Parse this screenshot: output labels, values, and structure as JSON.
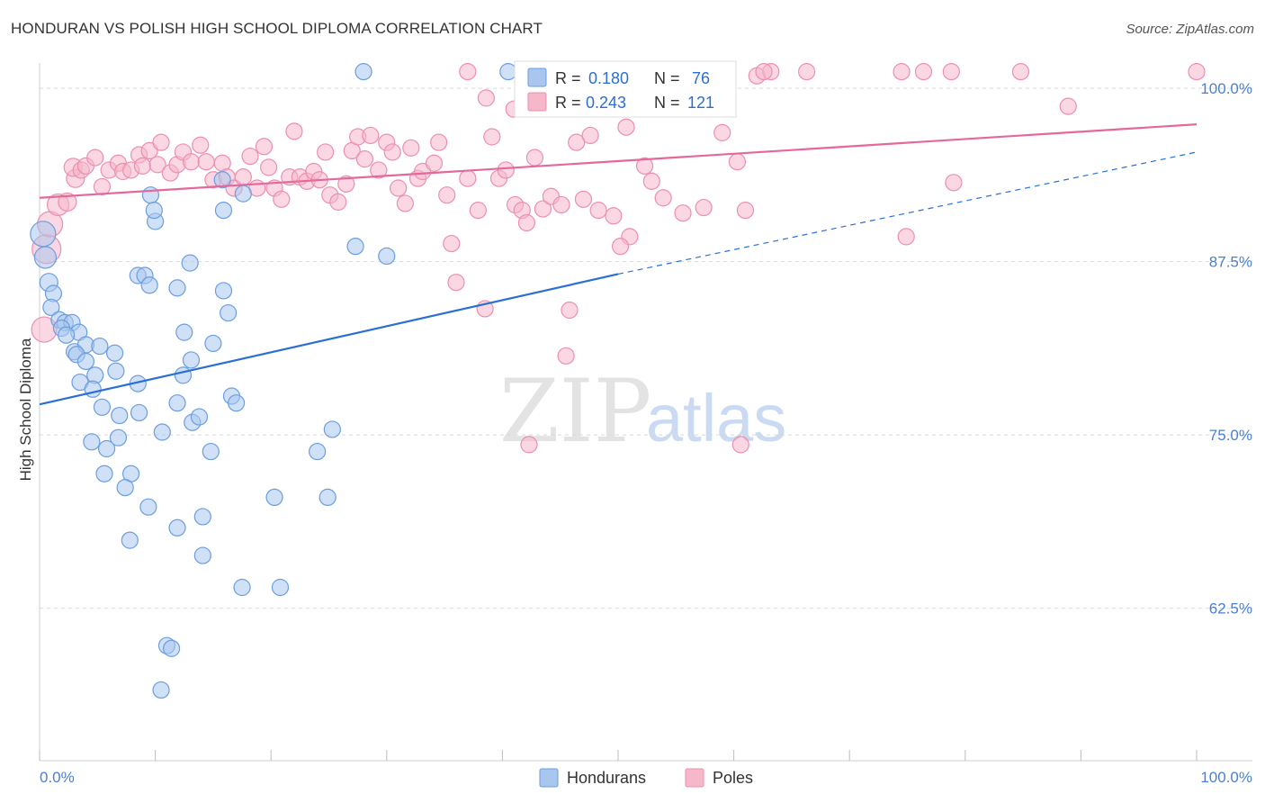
{
  "header": {
    "title": "HONDURAN VS POLISH HIGH SCHOOL DIPLOMA CORRELATION CHART",
    "source": "Source: ZipAtlas.com"
  },
  "watermark": {
    "zip": "ZIP",
    "atlas": "atlas"
  },
  "legend_top": {
    "rows": [
      {
        "r_label": "R = ",
        "r_value": "0.180",
        "n_label": "N = ",
        "n_value": "76"
      },
      {
        "r_label": "R = ",
        "r_value": "0.243",
        "n_label": "N = ",
        "n_value": "121"
      }
    ]
  },
  "legend_bottom": {
    "series": [
      "Hondurans",
      "Poles"
    ]
  },
  "colors": {
    "blue_fill": "#a9c6ef",
    "blue_stroke": "#6a9ee0",
    "blue_line": "#2a6fd6",
    "pink_fill": "#f6b7ca",
    "pink_stroke": "#ec8fae",
    "pink_line": "#e4699a",
    "grid": "#d9d9d9",
    "axis_text": "#4a7fd1"
  },
  "chart_data": {
    "type": "scatter",
    "title": "HONDURAN VS POLISH HIGH SCHOOL DIPLOMA CORRELATION CHART",
    "xlabel": "",
    "ylabel": "High School Diploma",
    "xlim": [
      0,
      100
    ],
    "ylim": [
      51.5,
      101.5
    ],
    "x_tick_labels": [
      "0.0%",
      "100.0%"
    ],
    "y_ticks": [
      100,
      87.5,
      75,
      62.5
    ],
    "y_tick_labels": [
      "100.0%",
      "87.5%",
      "75.0%",
      "62.5%"
    ],
    "series": [
      {
        "name": "Hondurans",
        "color": "blue",
        "R": 0.18,
        "N": 76,
        "trend": {
          "x": [
            0,
            50
          ],
          "y": [
            77.2,
            86.6
          ],
          "dashed_to": [
            100,
            95.4
          ]
        },
        "points": [
          [
            0.3,
            89.5,
            14
          ],
          [
            0.5,
            87.8,
            12
          ],
          [
            0.8,
            86.0,
            10
          ],
          [
            1.2,
            85.2,
            9
          ],
          [
            1.0,
            84.2,
            9
          ],
          [
            1.7,
            83.3,
            9
          ],
          [
            2.2,
            83.1,
            9
          ],
          [
            2.8,
            83.1,
            9
          ],
          [
            1.9,
            82.7,
            9
          ],
          [
            3.4,
            82.4,
            9
          ],
          [
            2.3,
            82.2,
            9
          ],
          [
            3.0,
            81.0,
            9
          ],
          [
            4.0,
            81.5,
            9
          ],
          [
            5.2,
            81.4,
            9
          ],
          [
            3.2,
            80.8,
            9
          ],
          [
            4.0,
            80.3,
            9
          ],
          [
            6.5,
            80.9,
            9
          ],
          [
            4.8,
            79.3,
            9
          ],
          [
            6.6,
            79.6,
            9
          ],
          [
            3.5,
            78.8,
            9
          ],
          [
            8.5,
            78.7,
            9
          ],
          [
            4.6,
            78.3,
            9
          ],
          [
            5.4,
            77.0,
            9
          ],
          [
            6.9,
            76.4,
            9
          ],
          [
            8.6,
            76.6,
            9
          ],
          [
            4.5,
            74.5,
            9
          ],
          [
            6.8,
            74.8,
            9
          ],
          [
            5.8,
            74.0,
            9
          ],
          [
            10.6,
            75.2,
            9
          ],
          [
            5.6,
            72.2,
            9
          ],
          [
            7.9,
            72.2,
            9
          ],
          [
            7.4,
            71.2,
            9
          ],
          [
            9.4,
            69.8,
            9
          ],
          [
            7.8,
            67.4,
            9
          ],
          [
            11.9,
            68.3,
            9
          ],
          [
            14.1,
            69.1,
            9
          ],
          [
            14.1,
            66.3,
            9
          ],
          [
            17.5,
            64.0,
            9
          ],
          [
            20.8,
            64.0,
            9
          ],
          [
            11.0,
            59.8,
            9
          ],
          [
            11.4,
            59.6,
            9
          ],
          [
            10.5,
            56.6,
            9
          ],
          [
            9.6,
            92.3,
            9
          ],
          [
            10.0,
            90.4,
            9
          ],
          [
            9.9,
            91.2,
            9
          ],
          [
            8.5,
            86.5,
            9
          ],
          [
            9.1,
            86.5,
            9
          ],
          [
            9.5,
            85.8,
            9
          ],
          [
            11.9,
            85.6,
            9
          ],
          [
            13.0,
            87.4,
            9
          ],
          [
            12.5,
            82.4,
            9
          ],
          [
            15.9,
            85.4,
            9
          ],
          [
            15.9,
            91.2,
            9
          ],
          [
            16.3,
            83.8,
            9
          ],
          [
            15.0,
            81.6,
            9
          ],
          [
            13.1,
            80.4,
            9
          ],
          [
            12.4,
            79.3,
            9
          ],
          [
            11.9,
            77.3,
            9
          ],
          [
            13.2,
            75.9,
            9
          ],
          [
            13.8,
            76.3,
            9
          ],
          [
            14.8,
            73.8,
            9
          ],
          [
            16.6,
            77.8,
            9
          ],
          [
            17.0,
            77.3,
            9
          ],
          [
            15.8,
            93.4,
            9
          ],
          [
            17.6,
            92.4,
            9
          ],
          [
            20.3,
            70.5,
            9
          ],
          [
            24.0,
            73.8,
            9
          ],
          [
            24.9,
            70.5,
            9
          ],
          [
            25.3,
            75.4,
            9
          ],
          [
            27.3,
            88.6,
            9
          ],
          [
            30.0,
            87.9,
            9
          ],
          [
            28.0,
            101.2,
            9
          ],
          [
            40.5,
            101.2,
            9
          ]
        ]
      },
      {
        "name": "Poles",
        "color": "pink",
        "R": 0.243,
        "N": 121,
        "trend": {
          "x": [
            0,
            100
          ],
          "y": [
            92.1,
            97.4
          ]
        },
        "points": [
          [
            0.4,
            82.6,
            14
          ],
          [
            0.6,
            88.4,
            16
          ],
          [
            0.9,
            90.2,
            14
          ],
          [
            1.6,
            91.6,
            12
          ],
          [
            2.4,
            91.8,
            10
          ],
          [
            3.1,
            93.5,
            10
          ],
          [
            2.9,
            94.3,
            10
          ],
          [
            3.6,
            94.1,
            9
          ],
          [
            4.0,
            94.4,
            9
          ],
          [
            4.8,
            95.0,
            9
          ],
          [
            5.4,
            92.9,
            9
          ],
          [
            6.0,
            94.1,
            9
          ],
          [
            6.8,
            94.6,
            9
          ],
          [
            7.2,
            94.0,
            9
          ],
          [
            7.9,
            94.1,
            9
          ],
          [
            8.6,
            95.2,
            9
          ],
          [
            8.9,
            94.4,
            9
          ],
          [
            9.5,
            95.5,
            9
          ],
          [
            10.2,
            94.5,
            9
          ],
          [
            10.5,
            96.1,
            9
          ],
          [
            11.3,
            93.9,
            9
          ],
          [
            11.9,
            94.5,
            9
          ],
          [
            12.4,
            95.4,
            9
          ],
          [
            13.1,
            94.7,
            9
          ],
          [
            13.9,
            95.9,
            9
          ],
          [
            14.4,
            94.7,
            9
          ],
          [
            15.0,
            93.4,
            9
          ],
          [
            15.8,
            94.6,
            9
          ],
          [
            16.2,
            93.6,
            9
          ],
          [
            16.8,
            92.8,
            9
          ],
          [
            17.6,
            93.6,
            9
          ],
          [
            18.2,
            95.1,
            9
          ],
          [
            18.8,
            92.8,
            9
          ],
          [
            19.4,
            95.8,
            9
          ],
          [
            19.8,
            94.3,
            9
          ],
          [
            20.3,
            92.8,
            9
          ],
          [
            20.9,
            92.0,
            9
          ],
          [
            21.6,
            93.6,
            9
          ],
          [
            22.0,
            96.9,
            9
          ],
          [
            22.5,
            93.6,
            9
          ],
          [
            23.1,
            93.3,
            9
          ],
          [
            23.7,
            94.0,
            9
          ],
          [
            24.2,
            93.4,
            9
          ],
          [
            24.7,
            95.4,
            9
          ],
          [
            25.1,
            92.3,
            9
          ],
          [
            25.8,
            91.8,
            9
          ],
          [
            26.5,
            93.1,
            9
          ],
          [
            27.0,
            95.5,
            9
          ],
          [
            27.5,
            96.5,
            9
          ],
          [
            28.1,
            94.9,
            9
          ],
          [
            28.6,
            96.6,
            9
          ],
          [
            29.3,
            94.1,
            9
          ],
          [
            30.0,
            96.1,
            9
          ],
          [
            30.5,
            95.4,
            9
          ],
          [
            31.0,
            92.8,
            9
          ],
          [
            31.6,
            91.7,
            9
          ],
          [
            32.1,
            95.7,
            9
          ],
          [
            32.7,
            93.5,
            9
          ],
          [
            33.1,
            94.0,
            9
          ],
          [
            34.1,
            94.6,
            9
          ],
          [
            34.5,
            96.1,
            9
          ],
          [
            35.2,
            92.3,
            9
          ],
          [
            35.6,
            88.8,
            9
          ],
          [
            36.0,
            86.0,
            9
          ],
          [
            37.0,
            93.5,
            9
          ],
          [
            37.9,
            91.2,
            9
          ],
          [
            38.5,
            84.1,
            9
          ],
          [
            39.1,
            96.5,
            9
          ],
          [
            39.7,
            93.5,
            9
          ],
          [
            40.3,
            94.1,
            9
          ],
          [
            41.1,
            91.6,
            9
          ],
          [
            41.7,
            91.2,
            9
          ],
          [
            42.1,
            90.3,
            9
          ],
          [
            42.8,
            95.0,
            9
          ],
          [
            43.5,
            91.3,
            9
          ],
          [
            44.2,
            92.2,
            9
          ],
          [
            45.1,
            91.6,
            9
          ],
          [
            45.8,
            84.0,
            9
          ],
          [
            46.4,
            96.1,
            9
          ],
          [
            47.0,
            92.0,
            9
          ],
          [
            47.6,
            96.6,
            9
          ],
          [
            48.3,
            91.2,
            9
          ],
          [
            49.6,
            90.8,
            9
          ],
          [
            50.7,
            97.2,
            9
          ],
          [
            51.0,
            89.3,
            9
          ],
          [
            52.3,
            94.4,
            9
          ],
          [
            52.9,
            93.3,
            9
          ],
          [
            53.9,
            92.1,
            9
          ],
          [
            55.6,
            91.0,
            9
          ],
          [
            57.4,
            91.4,
            9
          ],
          [
            59.0,
            96.8,
            9
          ],
          [
            60.3,
            94.7,
            9
          ],
          [
            61.0,
            91.2,
            9
          ],
          [
            50.2,
            88.6,
            9
          ],
          [
            45.5,
            80.7,
            9
          ],
          [
            42.3,
            74.3,
            9
          ],
          [
            60.6,
            74.3,
            9
          ],
          [
            74.9,
            89.3,
            9
          ],
          [
            79.0,
            93.2,
            9
          ],
          [
            88.9,
            98.7,
            9
          ],
          [
            38.6,
            99.3,
            9
          ],
          [
            41.0,
            98.5,
            9
          ],
          [
            53.3,
            99.6,
            9
          ],
          [
            58.0,
            100.6,
            9
          ],
          [
            62.0,
            100.9,
            9
          ],
          [
            63.2,
            101.2,
            9
          ],
          [
            66.3,
            101.2,
            9
          ],
          [
            74.5,
            101.2,
            9
          ],
          [
            76.4,
            101.2,
            9
          ],
          [
            78.8,
            101.2,
            9
          ],
          [
            84.8,
            101.2,
            9
          ],
          [
            100.0,
            101.2,
            9
          ],
          [
            37.0,
            101.2,
            9
          ],
          [
            42.0,
            101.2,
            9
          ],
          [
            48.9,
            101.2,
            9
          ],
          [
            54.1,
            101.2,
            9
          ],
          [
            55.0,
            101.2,
            9
          ],
          [
            62.6,
            101.2,
            9
          ],
          [
            59.3,
            101.2,
            9
          ],
          [
            44.3,
            101.2,
            9
          ],
          [
            45.8,
            101.2,
            9
          ]
        ]
      }
    ]
  }
}
